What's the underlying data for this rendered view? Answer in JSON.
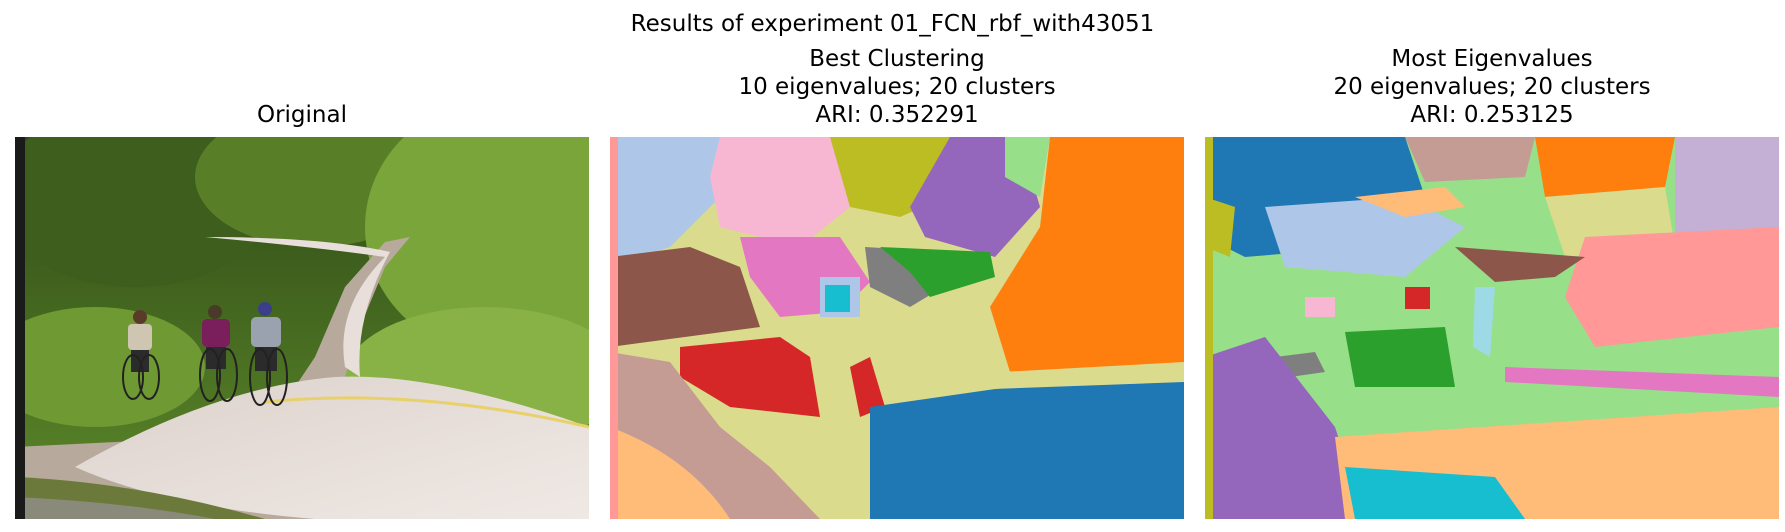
{
  "figure": {
    "suptitle": "Results of experiment 01_FCN_rbf_with43051"
  },
  "panels": [
    {
      "title_lines": [
        "Original"
      ],
      "kind": "photograph",
      "alt": "Original"
    },
    {
      "title_lines": [
        "Best Clustering",
        "10 eigenvalues; 20 clusters",
        "ARI: 0.352291"
      ],
      "kind": "segmentation",
      "eigenvalues": 10,
      "clusters": 20,
      "ari": 0.352291
    },
    {
      "title_lines": [
        "Most Eigenvalues",
        "20 eigenvalues; 20 clusters",
        "ARI: 0.253125"
      ],
      "kind": "segmentation",
      "eigenvalues": 20,
      "clusters": 20,
      "ari": 0.253125
    }
  ],
  "palette": {
    "blue": "#1f77b4",
    "light_blue": "#aec7e8",
    "orange": "#ff7f0e",
    "light_orange": "#ffbb78",
    "green": "#2ca02c",
    "light_green": "#98df8a",
    "red": "#d62728",
    "pink_red": "#ff9896",
    "purple": "#9467bd",
    "lavender": "#c5b0d5",
    "brown": "#8c564b",
    "tan": "#c49c94",
    "pink": "#e377c2",
    "light_pink": "#f7b6d2",
    "gray": "#7f7f7f",
    "light_gray": "#c7c7c7",
    "olive": "#bcbd22",
    "khaki": "#dbdb8d",
    "cyan": "#17becf",
    "light_cyan": "#9edae5"
  }
}
